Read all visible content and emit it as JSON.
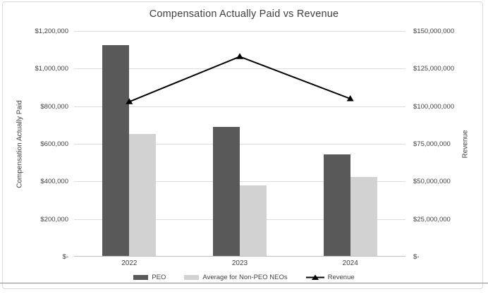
{
  "title": "Compensation Actually Paid vs Revenue",
  "chart_data": {
    "type": "bar+line combo",
    "title": "Compensation Actually Paid vs Revenue",
    "categories": [
      "2022",
      "2023",
      "2024"
    ],
    "series": [
      {
        "name": "PEO",
        "type": "bar",
        "axis": "left",
        "color": "#595959",
        "values": [
          1120000,
          685000,
          540000
        ]
      },
      {
        "name": "Average for Non-PEO NEOs",
        "type": "bar",
        "axis": "left",
        "color": "#d2d2d2",
        "values": [
          650000,
          375000,
          420000
        ]
      },
      {
        "name": "Revenue",
        "type": "line",
        "axis": "right",
        "color": "#000000",
        "marker": "triangle",
        "values": [
          103000000,
          133000000,
          105000000
        ]
      }
    ],
    "left_axis": {
      "label": "Compensation Actually Paid",
      "min": 0,
      "max": 1200000,
      "ticks": [
        "$1,200,000",
        "$1,000,000",
        "$800,000",
        "$600,000",
        "$400,000",
        "$200,000",
        "$-"
      ]
    },
    "right_axis": {
      "label": "Revenue",
      "min": 0,
      "max": 150000000,
      "ticks": [
        "$150,000,000",
        "$125,000,000",
        "$100,000,000",
        "$75,000,000",
        "$50,000,000",
        "$25,000,000",
        "$-"
      ]
    },
    "grid": true,
    "legend_position": "bottom"
  }
}
